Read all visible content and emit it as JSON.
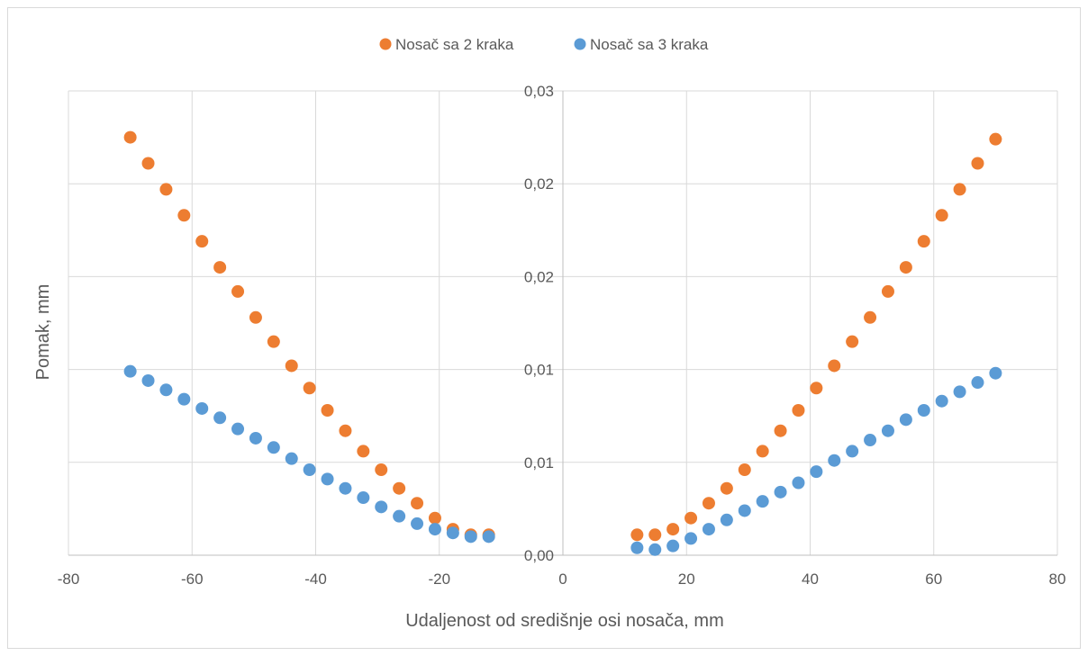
{
  "chart_data": {
    "type": "scatter",
    "title": "",
    "xlabel": "Udaljenost od središnje osi nosača, mm",
    "ylabel": "Pomak, mm",
    "xlim": [
      -80,
      80
    ],
    "ylim": [
      0,
      0.025
    ],
    "x_ticks": [
      -80,
      -60,
      -40,
      -20,
      0,
      20,
      40,
      60,
      80
    ],
    "x_tick_labels": [
      "-80",
      "-60",
      "-40",
      "-20",
      "0",
      "20",
      "40",
      "60",
      "80"
    ],
    "y_ticks": [
      0,
      0.005,
      0.01,
      0.015,
      0.02,
      0.025
    ],
    "y_tick_labels": [
      "0,00",
      "0,01",
      "0,01",
      "0,02",
      "0,02",
      "0,03"
    ],
    "grid": true,
    "legend_position": "top-center",
    "series": [
      {
        "name": "Nosač sa 2 kraka",
        "color": "#ed7d31",
        "x": [
          -70,
          -67.1,
          -64.2,
          -61.3,
          -58.4,
          -55.5,
          -52.6,
          -49.7,
          -46.8,
          -43.9,
          -41,
          -38.1,
          -35.2,
          -32.3,
          -29.4,
          -26.5,
          -23.6,
          -20.7,
          -17.8,
          -14.9,
          -12,
          12,
          14.9,
          17.8,
          20.7,
          23.6,
          26.5,
          29.4,
          32.3,
          35.2,
          38.1,
          41,
          43.9,
          46.8,
          49.7,
          52.6,
          55.5,
          58.4,
          61.3,
          64.2,
          67.1,
          70
        ],
        "y": [
          0.0225,
          0.0211,
          0.0197,
          0.0183,
          0.0169,
          0.0155,
          0.0142,
          0.0128,
          0.0115,
          0.0102,
          0.009,
          0.0078,
          0.0067,
          0.0056,
          0.0046,
          0.0036,
          0.0028,
          0.002,
          0.0014,
          0.0011,
          0.0011,
          0.0011,
          0.0011,
          0.0014,
          0.002,
          0.0028,
          0.0036,
          0.0046,
          0.0056,
          0.0067,
          0.0078,
          0.009,
          0.0102,
          0.0115,
          0.0128,
          0.0142,
          0.0155,
          0.0169,
          0.0183,
          0.0197,
          0.0211,
          0.0224
        ]
      },
      {
        "name": "Nosač sa 3 kraka",
        "color": "#5b9bd5",
        "x": [
          -70,
          -67.1,
          -64.2,
          -61.3,
          -58.4,
          -55.5,
          -52.6,
          -49.7,
          -46.8,
          -43.9,
          -41,
          -38.1,
          -35.2,
          -32.3,
          -29.4,
          -26.5,
          -23.6,
          -20.7,
          -17.8,
          -14.9,
          -12,
          12,
          14.9,
          17.8,
          20.7,
          23.6,
          26.5,
          29.4,
          32.3,
          35.2,
          38.1,
          41,
          43.9,
          46.8,
          49.7,
          52.6,
          55.5,
          58.4,
          61.3,
          64.2,
          67.1,
          70
        ],
        "y": [
          0.0099,
          0.0094,
          0.0089,
          0.0084,
          0.0079,
          0.0074,
          0.0068,
          0.0063,
          0.0058,
          0.0052,
          0.0046,
          0.0041,
          0.0036,
          0.0031,
          0.0026,
          0.0021,
          0.0017,
          0.0014,
          0.0012,
          0.001,
          0.001,
          0.0004,
          0.0003,
          0.0005,
          0.0009,
          0.0014,
          0.0019,
          0.0024,
          0.0029,
          0.0034,
          0.0039,
          0.0045,
          0.0051,
          0.0056,
          0.0062,
          0.0067,
          0.0073,
          0.0078,
          0.0083,
          0.0088,
          0.0093,
          0.0098
        ]
      }
    ]
  }
}
